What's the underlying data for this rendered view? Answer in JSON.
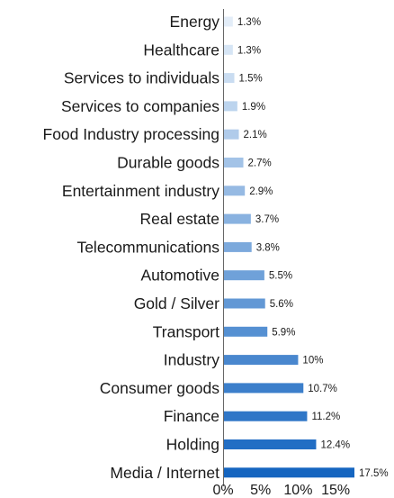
{
  "chart_data": {
    "type": "bar",
    "orientation": "horizontal",
    "categories": [
      "Energy",
      "Healthcare",
      "Services to individuals",
      "Services to companies",
      "Food Industry processing",
      "Durable goods",
      "Entertainment industry",
      "Real estate",
      "Telecommunications",
      "Automotive",
      "Gold / Silver",
      "Transport",
      "Industry",
      "Consumer goods",
      "Finance",
      "Holding",
      "Media / Internet"
    ],
    "values": [
      1.3,
      1.3,
      1.5,
      1.9,
      2.1,
      2.7,
      2.9,
      3.7,
      3.8,
      5.5,
      5.6,
      5.9,
      10,
      10.7,
      11.2,
      12.4,
      17.5
    ],
    "value_labels": [
      "1.3%",
      "1.3%",
      "1.5%",
      "1.9%",
      "2.1%",
      "2.7%",
      "2.9%",
      "3.7%",
      "3.8%",
      "5.5%",
      "5.6%",
      "5.9%",
      "10%",
      "10.7%",
      "11.2%",
      "12.4%",
      "17.5%"
    ],
    "xlim": [
      0,
      17.5
    ],
    "x_ticks": [
      0,
      5,
      10,
      15
    ],
    "x_tick_labels": [
      "0%",
      "5%",
      "10%",
      "15%"
    ],
    "title": "",
    "xlabel": "",
    "ylabel": "",
    "grid": false,
    "legend": "none",
    "colors": {
      "gradient_start": "#e3edf8",
      "gradient_end": "#1565c0",
      "axis": "#666666",
      "text": "#1a1a1a"
    }
  }
}
